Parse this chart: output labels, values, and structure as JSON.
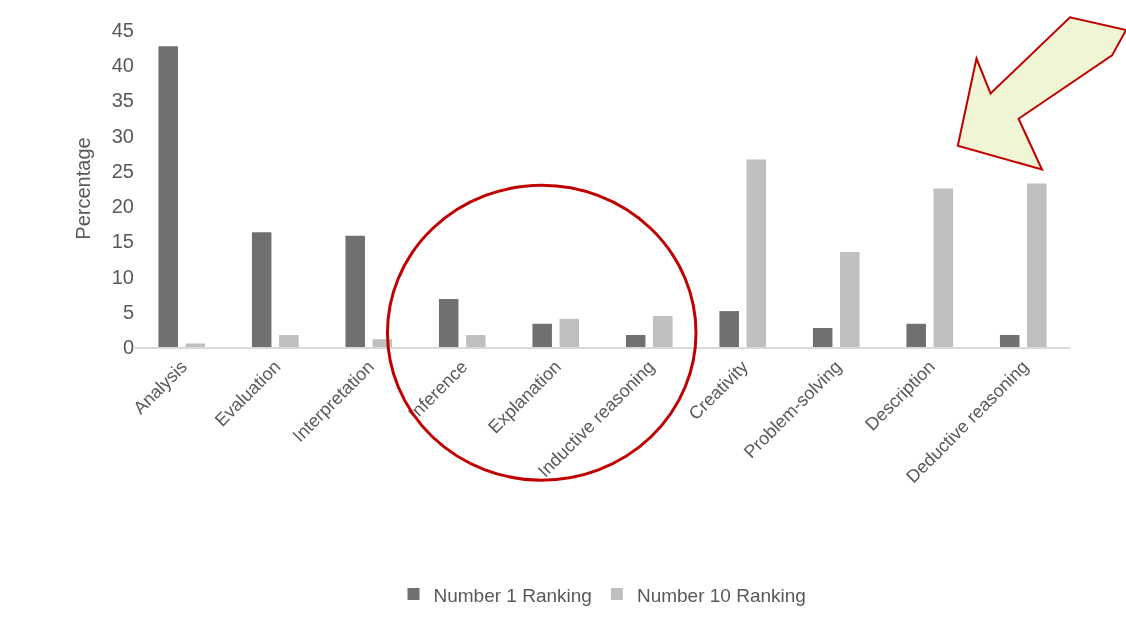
{
  "chart_data": {
    "type": "bar",
    "ylabel": "Percentage",
    "categories": [
      "Analysis",
      "Evaluation",
      "Interpretation",
      "Inference",
      "Explanation",
      "Inductive reasoning",
      "Creativity",
      "Problem-solving",
      "Description",
      "Deductive reasoning"
    ],
    "series": [
      {
        "name": "Number 1 Ranking",
        "color": "#707070",
        "values": [
          42.7,
          16.3,
          15.8,
          6.8,
          3.3,
          1.7,
          5.1,
          2.7,
          3.3,
          1.7
        ]
      },
      {
        "name": "Number 10 Ranking",
        "color": "#bfbfbf",
        "values": [
          0.5,
          1.7,
          1.1,
          1.7,
          4.0,
          4.4,
          26.6,
          13.5,
          22.5,
          23.2
        ]
      }
    ],
    "ylim": [
      0,
      45
    ],
    "yticks": [
      0,
      5,
      10,
      15,
      20,
      25,
      30,
      35,
      40,
      45
    ],
    "legend": "bottom"
  }
}
